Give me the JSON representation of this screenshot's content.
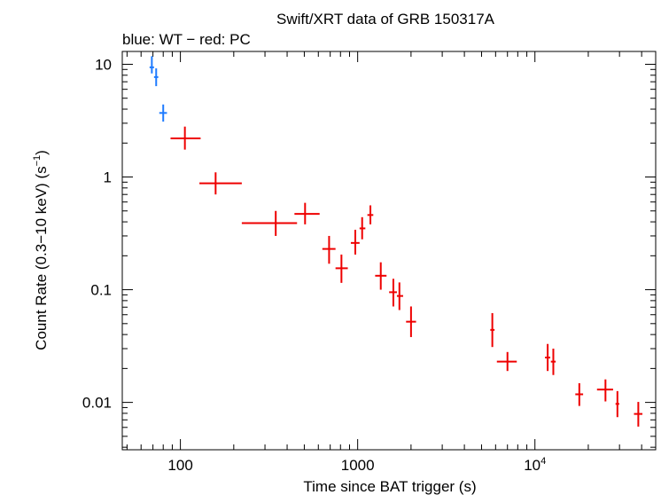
{
  "chart_data": {
    "type": "scatter",
    "title": "Swift/XRT data of GRB 150317A",
    "subtitle": "blue: WT − red: PC",
    "xlabel": "Time since BAT trigger (s)",
    "ylabel_main": "Count Rate (0.3−10 keV) (s",
    "ylabel_sup": "−1",
    "ylabel_end": ")",
    "x_scale": "log",
    "y_scale": "log",
    "xlim": [
      47,
      48000
    ],
    "ylim": [
      0.0038,
      13
    ],
    "x_ticks": [
      {
        "value": 100,
        "label": "100",
        "sup": ""
      },
      {
        "value": 1000,
        "label": "1000",
        "sup": ""
      },
      {
        "value": 10000,
        "label": "10",
        "sup": "4"
      }
    ],
    "y_ticks": [
      {
        "value": 10,
        "label": "10"
      },
      {
        "value": 1,
        "label": "1"
      },
      {
        "value": 0.1,
        "label": "0.1"
      },
      {
        "value": 0.01,
        "label": "0.01"
      }
    ],
    "series": [
      {
        "color": "#1e7bff",
        "points": [
          {
            "x": 69,
            "xlo": 67,
            "xhi": 71,
            "y": 9.4,
            "ylo": 8.3,
            "yhi": 11.8
          },
          {
            "x": 73,
            "xlo": 71,
            "xhi": 75,
            "y": 7.7,
            "ylo": 6.4,
            "yhi": 9.2
          },
          {
            "x": 80,
            "xlo": 76,
            "xhi": 84,
            "y": 3.7,
            "ylo": 3.1,
            "yhi": 4.4
          }
        ]
      },
      {
        "color": "#ee0000",
        "points": [
          {
            "x": 106,
            "xlo": 88,
            "xhi": 130,
            "y": 2.2,
            "ylo": 1.75,
            "yhi": 2.8
          },
          {
            "x": 158,
            "xlo": 128,
            "xhi": 222,
            "y": 0.88,
            "ylo": 0.7,
            "yhi": 1.1
          },
          {
            "x": 345,
            "xlo": 222,
            "xhi": 455,
            "y": 0.39,
            "ylo": 0.3,
            "yhi": 0.5
          },
          {
            "x": 505,
            "xlo": 440,
            "xhi": 610,
            "y": 0.47,
            "ylo": 0.38,
            "yhi": 0.59
          },
          {
            "x": 690,
            "xlo": 632,
            "xhi": 750,
            "y": 0.23,
            "ylo": 0.17,
            "yhi": 0.3
          },
          {
            "x": 810,
            "xlo": 750,
            "xhi": 880,
            "y": 0.155,
            "ylo": 0.115,
            "yhi": 0.205
          },
          {
            "x": 970,
            "xlo": 915,
            "xhi": 1025,
            "y": 0.26,
            "ylo": 0.205,
            "yhi": 0.34
          },
          {
            "x": 1060,
            "xlo": 1025,
            "xhi": 1105,
            "y": 0.35,
            "ylo": 0.28,
            "yhi": 0.44
          },
          {
            "x": 1180,
            "xlo": 1135,
            "xhi": 1225,
            "y": 0.46,
            "ylo": 0.38,
            "yhi": 0.56
          },
          {
            "x": 1350,
            "xlo": 1255,
            "xhi": 1455,
            "y": 0.133,
            "ylo": 0.1,
            "yhi": 0.175
          },
          {
            "x": 1590,
            "xlo": 1505,
            "xhi": 1665,
            "y": 0.095,
            "ylo": 0.071,
            "yhi": 0.125
          },
          {
            "x": 1720,
            "xlo": 1665,
            "xhi": 1805,
            "y": 0.088,
            "ylo": 0.066,
            "yhi": 0.116
          },
          {
            "x": 2000,
            "xlo": 1875,
            "xhi": 2135,
            "y": 0.052,
            "ylo": 0.038,
            "yhi": 0.071
          },
          {
            "x": 5750,
            "xlo": 5600,
            "xhi": 5920,
            "y": 0.044,
            "ylo": 0.031,
            "yhi": 0.062
          },
          {
            "x": 7000,
            "xlo": 6100,
            "xhi": 7900,
            "y": 0.023,
            "ylo": 0.019,
            "yhi": 0.028
          },
          {
            "x": 11800,
            "xlo": 11400,
            "xhi": 12200,
            "y": 0.025,
            "ylo": 0.019,
            "yhi": 0.033
          },
          {
            "x": 12700,
            "xlo": 12300,
            "xhi": 13100,
            "y": 0.023,
            "ylo": 0.0175,
            "yhi": 0.03
          },
          {
            "x": 17800,
            "xlo": 16900,
            "xhi": 18700,
            "y": 0.0118,
            "ylo": 0.0093,
            "yhi": 0.0148
          },
          {
            "x": 25000,
            "xlo": 22400,
            "xhi": 27600,
            "y": 0.013,
            "ylo": 0.0102,
            "yhi": 0.016
          },
          {
            "x": 29200,
            "xlo": 28500,
            "xhi": 29900,
            "y": 0.0097,
            "ylo": 0.0074,
            "yhi": 0.0126
          },
          {
            "x": 38300,
            "xlo": 36200,
            "xhi": 40400,
            "y": 0.0079,
            "ylo": 0.0061,
            "yhi": 0.0101
          }
        ]
      }
    ]
  }
}
